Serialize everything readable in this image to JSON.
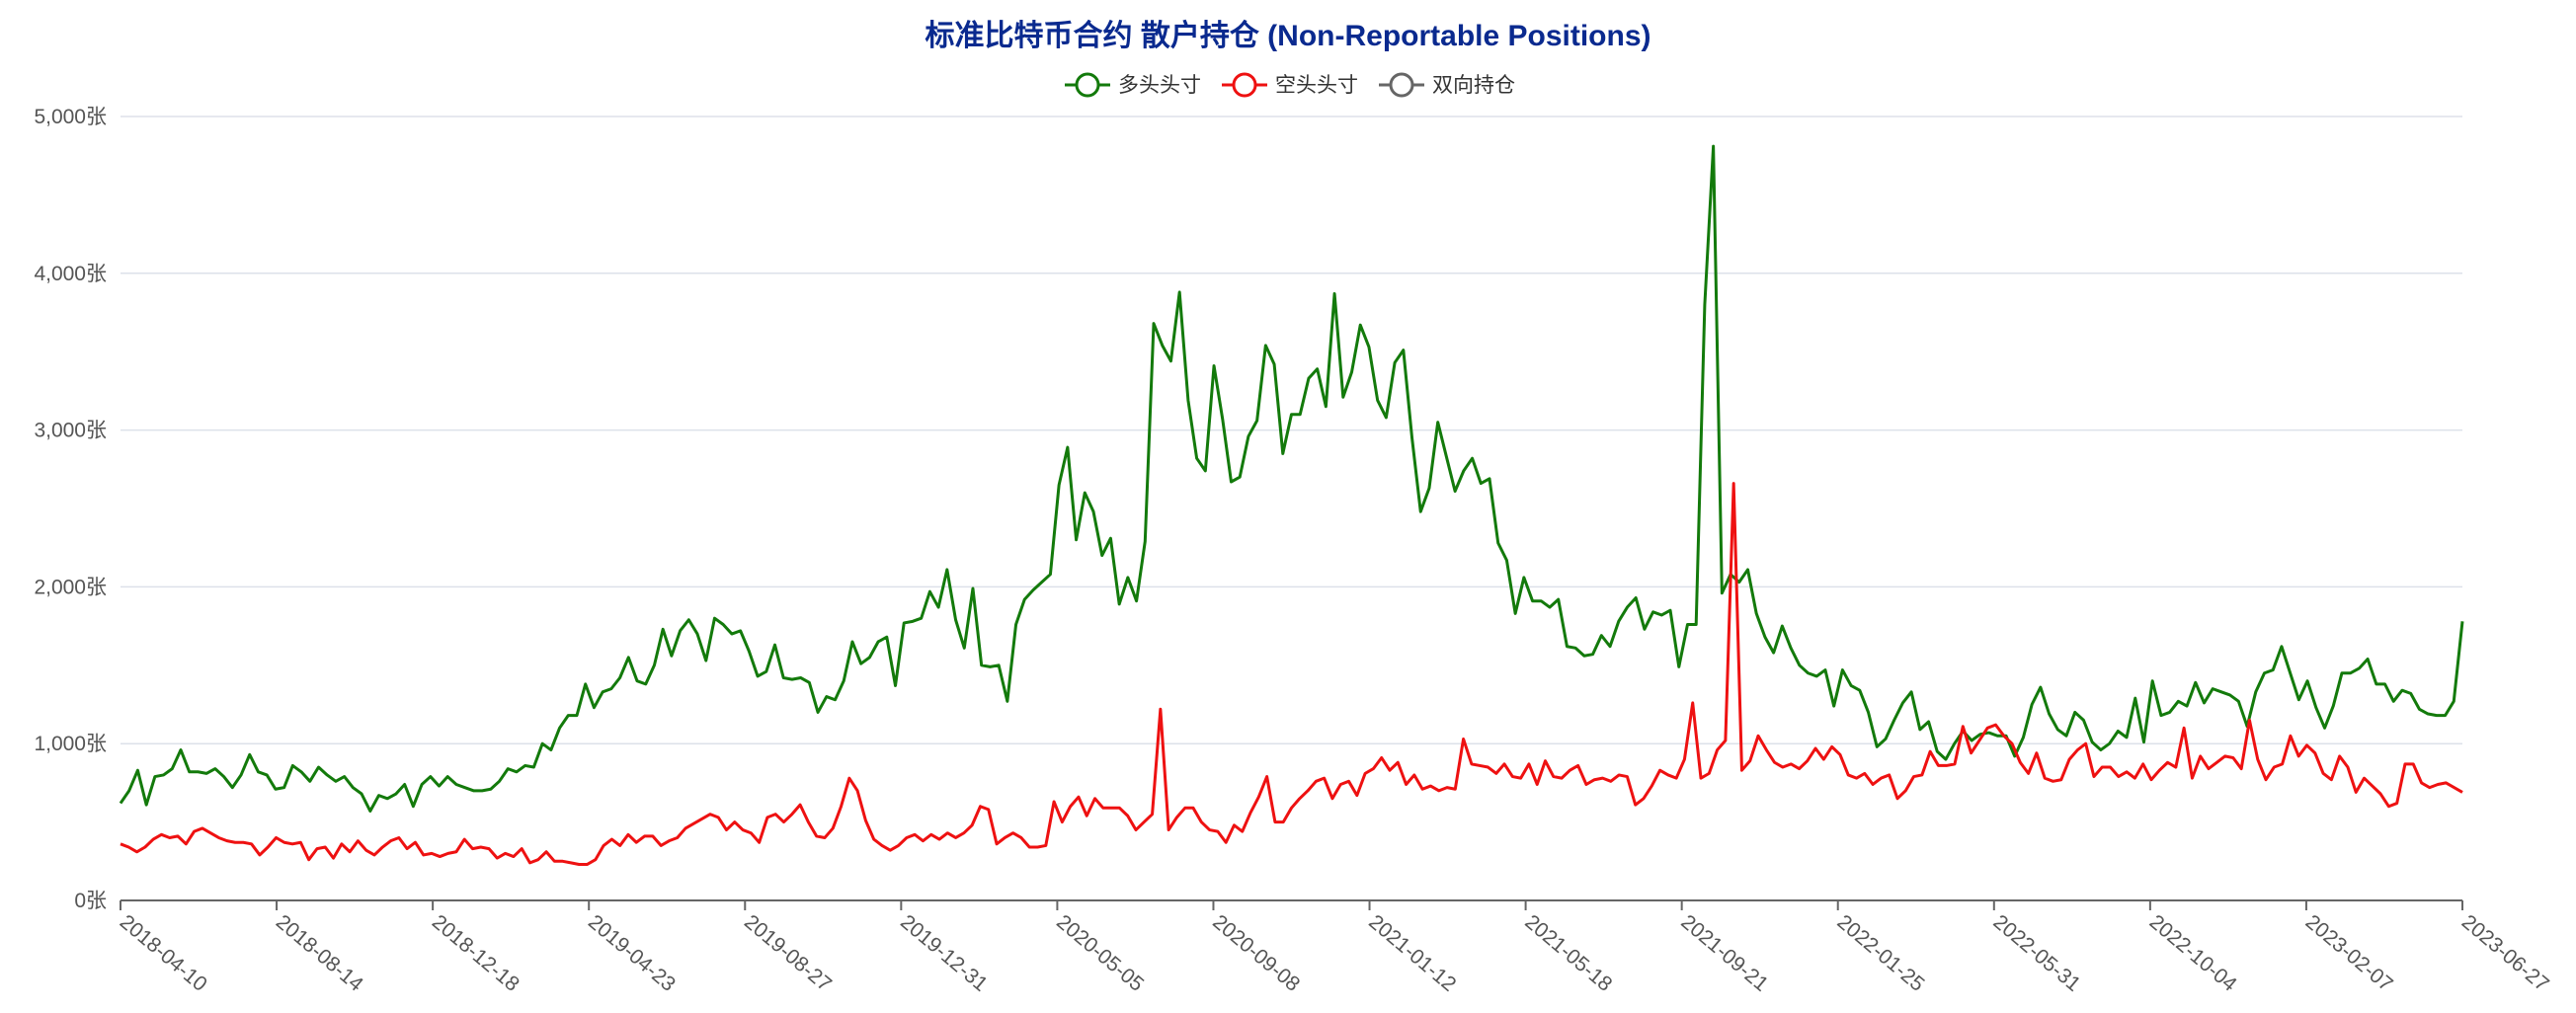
{
  "chart_data": {
    "type": "line",
    "title": "标准比特币合约 散户持仓 (Non-Reportable Positions)",
    "xlabel": "",
    "ylabel": "",
    "ylim": [
      0,
      5000
    ],
    "y_ticks": [
      {
        "value": 0,
        "label": "0张"
      },
      {
        "value": 1000,
        "label": "1,000张"
      },
      {
        "value": 2000,
        "label": "2,000张"
      },
      {
        "value": 3000,
        "label": "3,000张"
      },
      {
        "value": 4000,
        "label": "4,000张"
      },
      {
        "value": 5000,
        "label": "5,000张"
      }
    ],
    "x_ticks": [
      "2018-04-10",
      "2018-08-14",
      "2018-12-18",
      "2019-04-23",
      "2019-08-27",
      "2019-12-31",
      "2020-05-05",
      "2020-09-08",
      "2021-01-12",
      "2021-05-18",
      "2021-09-21",
      "2022-01-25",
      "2022-05-31",
      "2022-10-04",
      "2023-02-07",
      "2023-06-27"
    ],
    "grid": true,
    "legend_position": "top-center",
    "series": [
      {
        "name": "多头头寸",
        "color": "#137a0b",
        "values": [
          620,
          700,
          830,
          610,
          790,
          800,
          840,
          960,
          820,
          820,
          810,
          840,
          790,
          720,
          800,
          930,
          820,
          800,
          710,
          720,
          860,
          820,
          760,
          850,
          800,
          760,
          790,
          720,
          680,
          570,
          670,
          650,
          680,
          740,
          600,
          740,
          790,
          730,
          790,
          740,
          720,
          700,
          700,
          710,
          760,
          840,
          820,
          860,
          850,
          1000,
          960,
          1100,
          1180,
          1180,
          1380,
          1230,
          1330,
          1350,
          1420,
          1550,
          1400,
          1380,
          1500,
          1730,
          1560,
          1720,
          1790,
          1700,
          1530,
          1800,
          1760,
          1700,
          1720,
          1590,
          1430,
          1460,
          1630,
          1420,
          1410,
          1420,
          1390,
          1200,
          1300,
          1280,
          1400,
          1650,
          1510,
          1550,
          1650,
          1680,
          1370,
          1770,
          1780,
          1800,
          1970,
          1870,
          2110,
          1790,
          1610,
          1990,
          1500,
          1490,
          1500,
          1270,
          1760,
          1920,
          1980,
          2030,
          2080,
          2650,
          2890,
          2300,
          2600,
          2480,
          2200,
          2310,
          1890,
          2060,
          1910,
          2290,
          3680,
          3540,
          3440,
          3880,
          3190,
          2820,
          2740,
          3410,
          3070,
          2670,
          2700,
          2960,
          3060,
          3540,
          3420,
          2850,
          3100,
          3100,
          3330,
          3390,
          3150,
          3870,
          3210,
          3370,
          3670,
          3530,
          3190,
          3080,
          3430,
          3510,
          2950,
          2480,
          2630,
          3050,
          2830,
          2610,
          2740,
          2820,
          2660,
          2690,
          2280,
          2170,
          1830,
          2060,
          1910,
          1910,
          1870,
          1920,
          1620,
          1610,
          1560,
          1570,
          1690,
          1620,
          1780,
          1870,
          1930,
          1730,
          1840,
          1820,
          1850,
          1490,
          1760,
          1760,
          3800,
          4810,
          1960,
          2080,
          2030,
          2110,
          1830,
          1680,
          1580,
          1750,
          1610,
          1500,
          1450,
          1430,
          1470,
          1240,
          1470,
          1370,
          1340,
          1200,
          980,
          1030,
          1150,
          1260,
          1330,
          1090,
          1140,
          950,
          900,
          1000,
          1080,
          1020,
          1060,
          1070,
          1050,
          1050,
          920,
          1040,
          1250,
          1360,
          1190,
          1090,
          1050,
          1200,
          1150,
          1010,
          960,
          1000,
          1080,
          1040,
          1290,
          1010,
          1400,
          1180,
          1200,
          1270,
          1240,
          1390,
          1260,
          1350,
          1330,
          1310,
          1270,
          1110,
          1330,
          1450,
          1470,
          1620,
          1450,
          1280,
          1400,
          1230,
          1100,
          1240,
          1450,
          1450,
          1480,
          1540,
          1380,
          1380,
          1270,
          1340,
          1320,
          1220,
          1190,
          1180,
          1180,
          1270,
          1780
        ]
      },
      {
        "name": "空头头寸",
        "color": "#ee1111",
        "values": [
          360,
          340,
          310,
          340,
          390,
          420,
          400,
          410,
          360,
          440,
          460,
          430,
          400,
          380,
          370,
          370,
          360,
          290,
          340,
          400,
          370,
          360,
          370,
          260,
          330,
          340,
          270,
          360,
          310,
          380,
          320,
          290,
          340,
          380,
          400,
          330,
          370,
          290,
          300,
          280,
          300,
          310,
          390,
          330,
          340,
          330,
          270,
          300,
          280,
          330,
          240,
          260,
          310,
          250,
          250,
          240,
          230,
          230,
          260,
          350,
          390,
          350,
          420,
          370,
          410,
          410,
          350,
          380,
          400,
          460,
          490,
          520,
          550,
          530,
          450,
          500,
          450,
          430,
          370,
          530,
          550,
          500,
          550,
          610,
          500,
          410,
          400,
          460,
          600,
          780,
          700,
          510,
          390,
          350,
          320,
          350,
          400,
          420,
          380,
          420,
          390,
          430,
          400,
          430,
          480,
          600,
          580,
          360,
          400,
          430,
          400,
          340,
          340,
          350,
          630,
          500,
          600,
          660,
          540,
          650,
          590,
          590,
          590,
          540,
          450,
          500,
          550,
          1220,
          450,
          530,
          590,
          590,
          500,
          450,
          440,
          370,
          480,
          440,
          560,
          660,
          790,
          500,
          500,
          590,
          650,
          700,
          760,
          780,
          650,
          740,
          760,
          670,
          810,
          840,
          910,
          830,
          880,
          740,
          800,
          710,
          730,
          700,
          720,
          710,
          1030,
          870,
          860,
          850,
          810,
          870,
          790,
          780,
          870,
          740,
          890,
          790,
          780,
          830,
          860,
          740,
          770,
          780,
          760,
          800,
          790,
          610,
          650,
          730,
          830,
          800,
          780,
          900,
          1260,
          780,
          810,
          960,
          1020,
          2660,
          830,
          890,
          1050,
          960,
          880,
          850,
          870,
          840,
          890,
          970,
          900,
          980,
          930,
          800,
          780,
          810,
          740,
          780,
          800,
          650,
          700,
          790,
          800,
          950,
          860,
          860,
          870,
          1110,
          940,
          1020,
          1100,
          1120,
          1050,
          1000,
          880,
          810,
          940,
          780,
          760,
          770,
          900,
          960,
          1000,
          790,
          850,
          850,
          790,
          820,
          780,
          870,
          770,
          830,
          880,
          850,
          1100,
          780,
          920,
          840,
          880,
          920,
          910,
          840,
          1150,
          900,
          770,
          850,
          870,
          1050,
          920,
          990,
          940,
          810,
          770,
          920,
          850,
          690,
          780,
          730,
          680,
          600,
          620,
          870,
          870,
          750,
          720,
          740,
          750,
          720,
          690
        ]
      },
      {
        "name": "双向持仓",
        "color": "#666666",
        "values": []
      }
    ]
  }
}
